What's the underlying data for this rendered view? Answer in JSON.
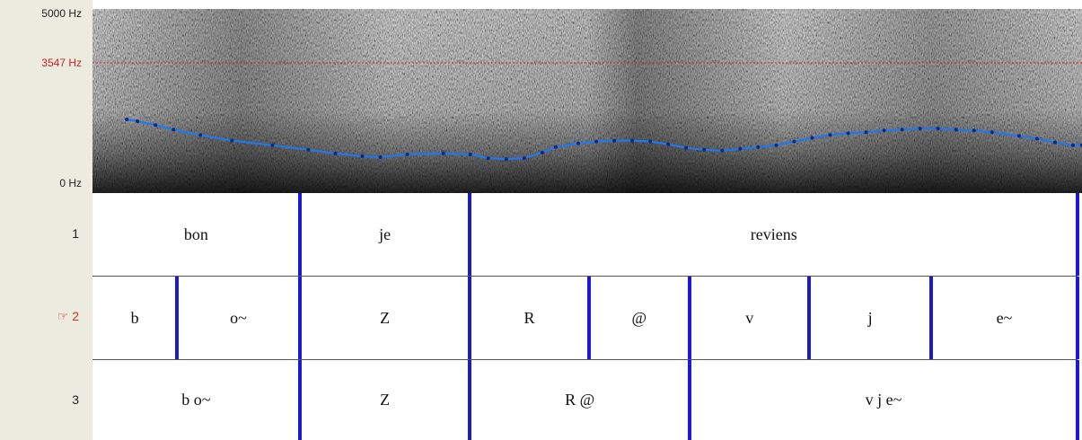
{
  "freq_axis": {
    "top": "5000 Hz",
    "cursor": "3547 Hz",
    "bottom": "0 Hz"
  },
  "colors": {
    "pitch_line": "#2277ee",
    "boundary": "#1a1ad6",
    "cursor_line": "#cc2222",
    "selected_tier": "#e03020"
  },
  "pitch_track": [
    {
      "t": 0.038,
      "v": 0.4
    },
    {
      "t": 0.05,
      "v": 0.39
    },
    {
      "t": 0.07,
      "v": 0.37
    },
    {
      "t": 0.09,
      "v": 0.345
    },
    {
      "t": 0.12,
      "v": 0.315
    },
    {
      "t": 0.155,
      "v": 0.285
    },
    {
      "t": 0.2,
      "v": 0.26
    },
    {
      "t": 0.24,
      "v": 0.235
    },
    {
      "t": 0.27,
      "v": 0.215
    },
    {
      "t": 0.3,
      "v": 0.2
    },
    {
      "t": 0.32,
      "v": 0.195
    },
    {
      "t": 0.35,
      "v": 0.21
    },
    {
      "t": 0.39,
      "v": 0.215
    },
    {
      "t": 0.42,
      "v": 0.21
    },
    {
      "t": 0.44,
      "v": 0.19
    },
    {
      "t": 0.46,
      "v": 0.185
    },
    {
      "t": 0.48,
      "v": 0.19
    },
    {
      "t": 0.5,
      "v": 0.22
    },
    {
      "t": 0.515,
      "v": 0.25
    },
    {
      "t": 0.54,
      "v": 0.27
    },
    {
      "t": 0.56,
      "v": 0.28
    },
    {
      "t": 0.58,
      "v": 0.285
    },
    {
      "t": 0.6,
      "v": 0.285
    },
    {
      "t": 0.62,
      "v": 0.28
    },
    {
      "t": 0.64,
      "v": 0.265
    },
    {
      "t": 0.66,
      "v": 0.245
    },
    {
      "t": 0.68,
      "v": 0.235
    },
    {
      "t": 0.7,
      "v": 0.23
    },
    {
      "t": 0.72,
      "v": 0.24
    },
    {
      "t": 0.74,
      "v": 0.25
    },
    {
      "t": 0.76,
      "v": 0.26
    },
    {
      "t": 0.78,
      "v": 0.28
    },
    {
      "t": 0.8,
      "v": 0.3
    },
    {
      "t": 0.82,
      "v": 0.315
    },
    {
      "t": 0.84,
      "v": 0.325
    },
    {
      "t": 0.86,
      "v": 0.33
    },
    {
      "t": 0.88,
      "v": 0.34
    },
    {
      "t": 0.9,
      "v": 0.345
    },
    {
      "t": 0.92,
      "v": 0.35
    },
    {
      "t": 0.94,
      "v": 0.35
    },
    {
      "t": 0.96,
      "v": 0.345
    },
    {
      "t": 0.98,
      "v": 0.34
    },
    {
      "t": 1.0,
      "v": 0.33
    },
    {
      "t": 1.03,
      "v": 0.31
    },
    {
      "t": 1.05,
      "v": 0.295
    },
    {
      "t": 1.07,
      "v": 0.275
    },
    {
      "t": 1.09,
      "v": 0.26
    },
    {
      "t": 1.1,
      "v": 0.26
    }
  ],
  "tiers": [
    {
      "number": "1",
      "selected": false,
      "intervals": [
        {
          "label": "bon",
          "start": 0,
          "end": 0.2095
        },
        {
          "label": "je",
          "start": 0.2095,
          "end": 0.3815
        },
        {
          "label": "reviens",
          "start": 0.3815,
          "end": 0.9955
        }
      ]
    },
    {
      "number": "☞ 2",
      "selected": true,
      "intervals": [
        {
          "label": "b",
          "start": 0,
          "end": 0.0855
        },
        {
          "label": "o~",
          "start": 0.0855,
          "end": 0.2095
        },
        {
          "label": "Z",
          "start": 0.2095,
          "end": 0.3815
        },
        {
          "label": "R",
          "start": 0.3815,
          "end": 0.5015
        },
        {
          "label": "@",
          "start": 0.5015,
          "end": 0.6035
        },
        {
          "label": "v",
          "start": 0.6035,
          "end": 0.7245
        },
        {
          "label": "j",
          "start": 0.7245,
          "end": 0.8475
        },
        {
          "label": "e~",
          "start": 0.8475,
          "end": 0.9955
        }
      ]
    },
    {
      "number": "3",
      "selected": false,
      "intervals": [
        {
          "label": "b o~",
          "start": 0,
          "end": 0.2095
        },
        {
          "label": "Z",
          "start": 0.2095,
          "end": 0.3815
        },
        {
          "label": "R @",
          "start": 0.3815,
          "end": 0.6035
        },
        {
          "label": "v j e~",
          "start": 0.6035,
          "end": 0.9955
        }
      ]
    }
  ]
}
